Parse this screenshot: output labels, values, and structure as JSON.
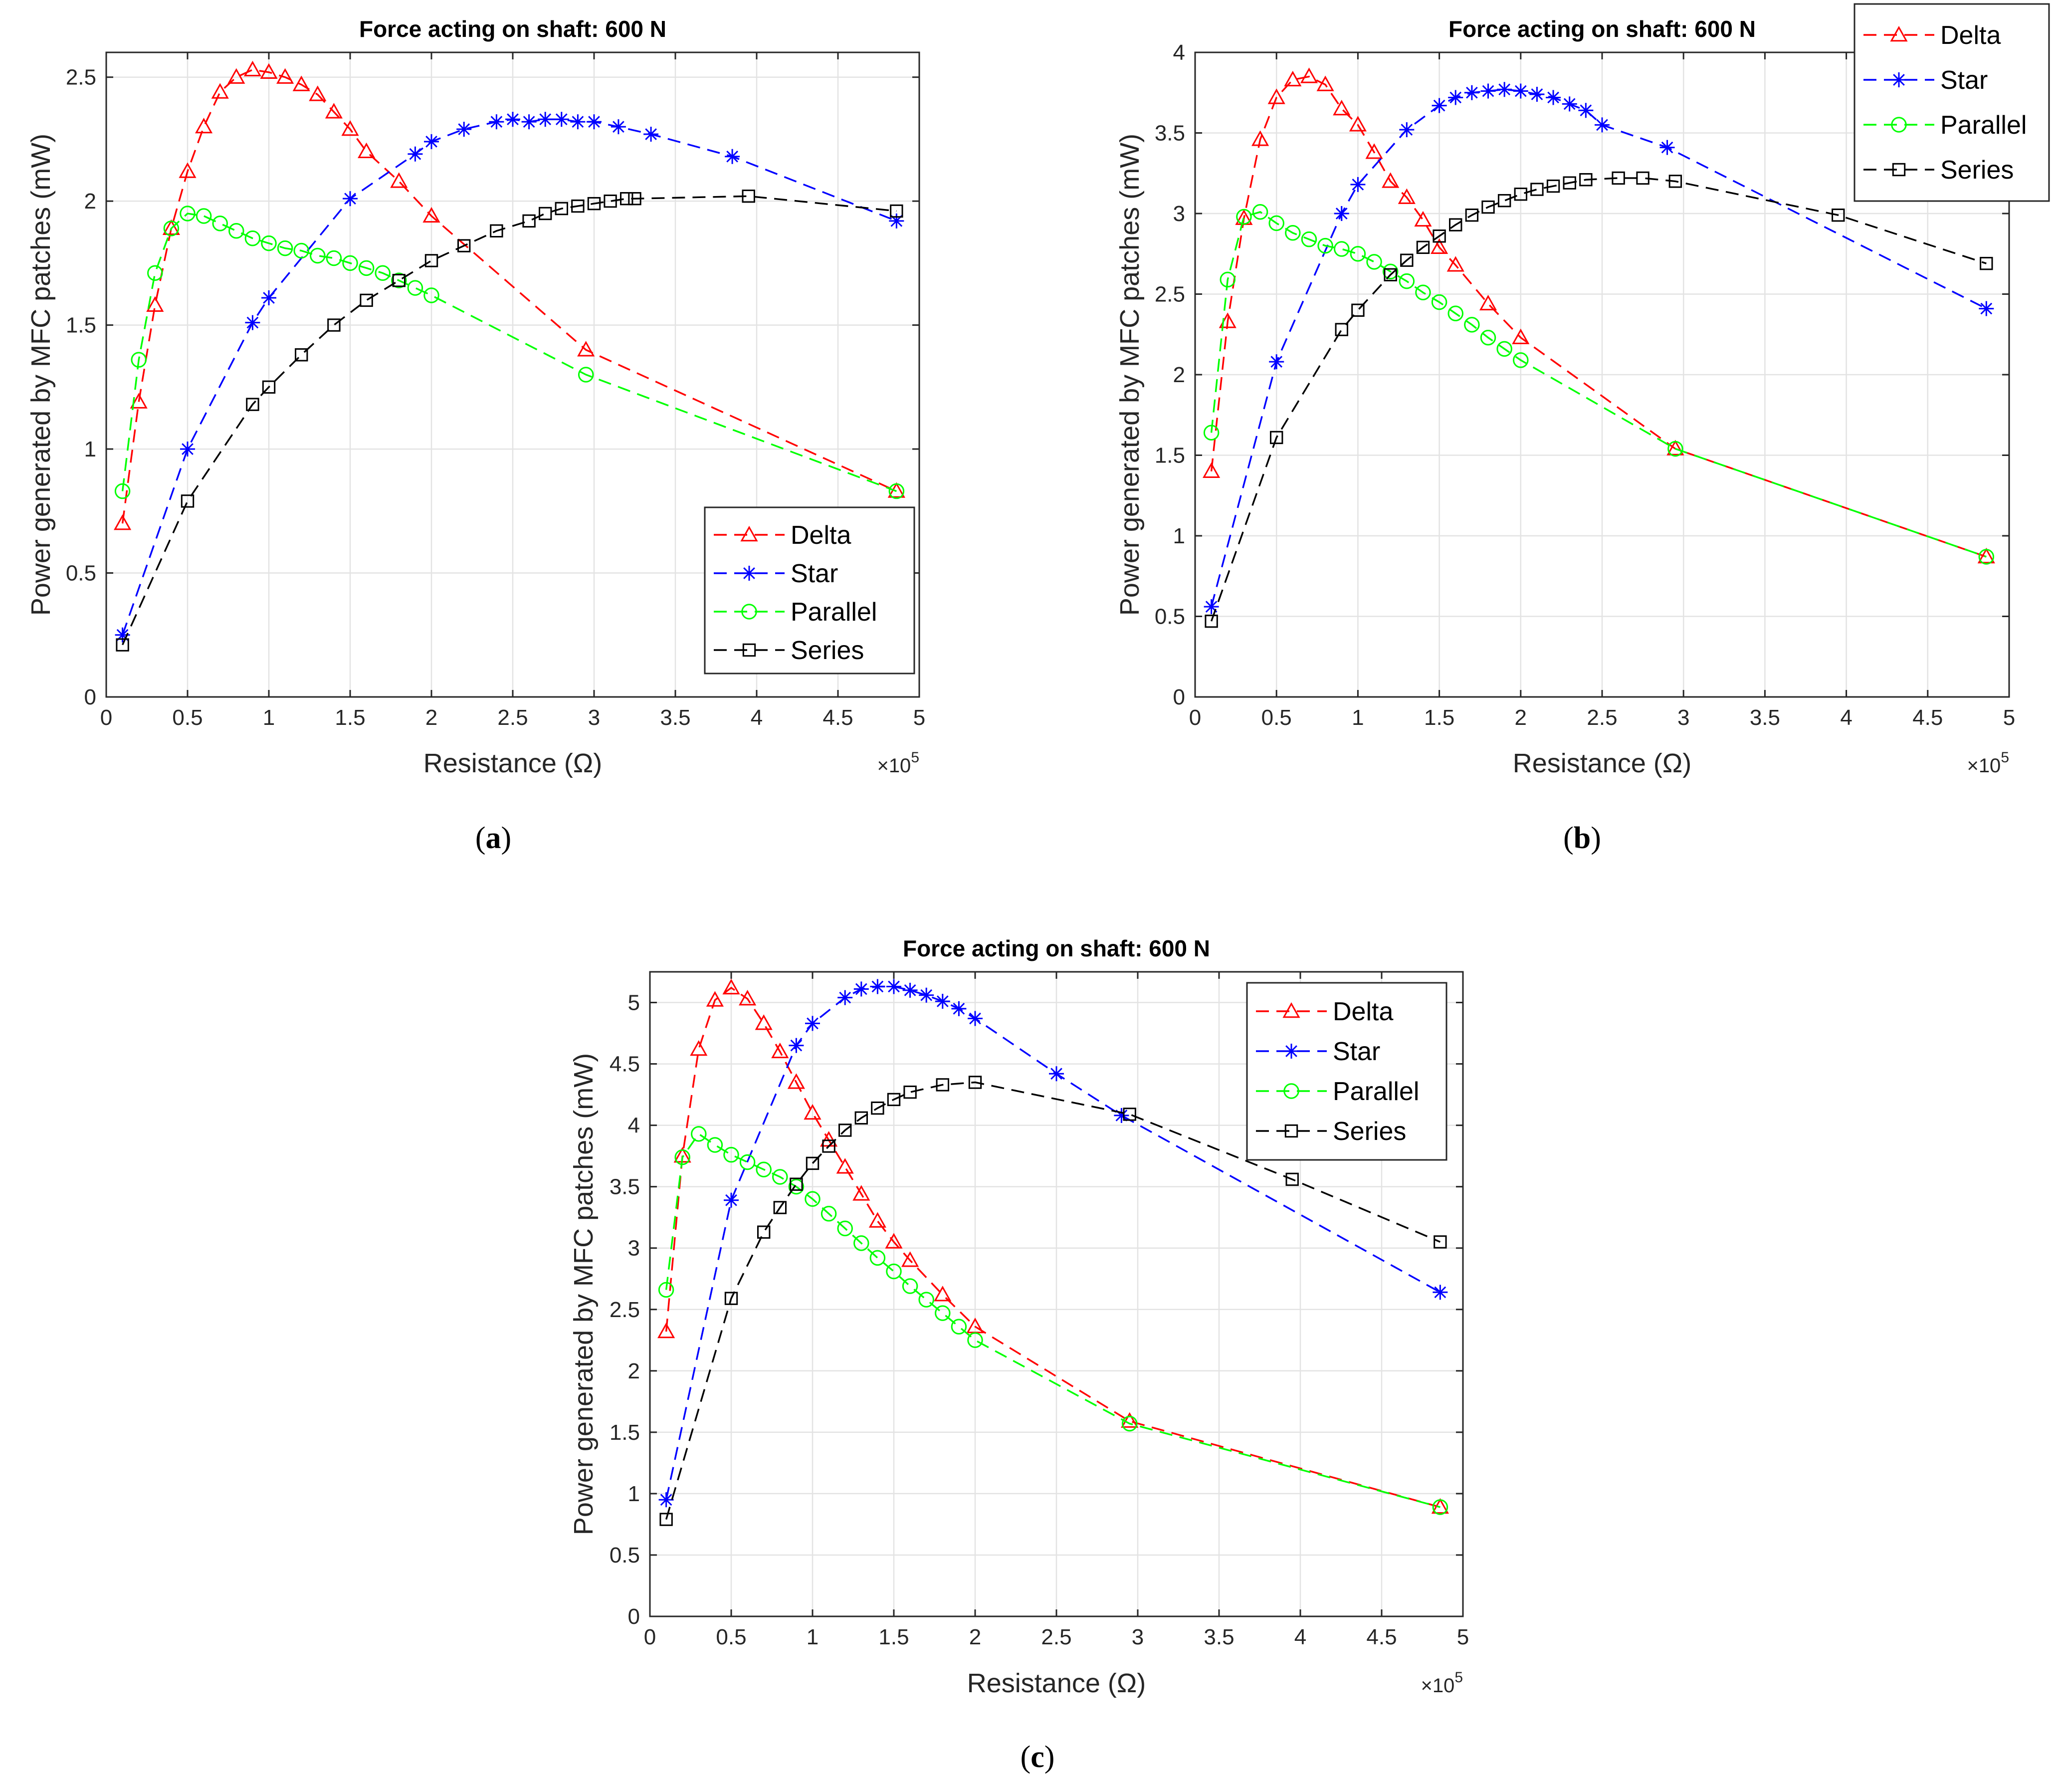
{
  "colors": {
    "Delta": "#ff0000",
    "Star": "#0000ff",
    "Parallel": "#00ff00",
    "Series": "#000000"
  },
  "chart_data": [
    {
      "panel": "a",
      "panel_label": {
        "open": "(",
        "letter": "a",
        "close": ")"
      },
      "type": "line",
      "title": "Force acting on shaft: 600 N",
      "xlabel": "Resistance (Ω)",
      "ylabel": "Power generated by MFC patches (mW)",
      "x_exponent": {
        "base": "×10",
        "power": "5"
      },
      "xlim": [
        0,
        5
      ],
      "ylim": [
        0,
        2.6
      ],
      "xticks": [
        0,
        0.5,
        1,
        1.5,
        2,
        2.5,
        3,
        3.5,
        4,
        4.5,
        5
      ],
      "xtick_labels": [
        "0",
        "0.5",
        "1",
        "1.5",
        "2",
        "2.5",
        "3",
        "3.5",
        "4",
        "4.5",
        "5"
      ],
      "yticks": [
        0,
        0.5,
        1,
        1.5,
        2,
        2.5
      ],
      "ytick_labels": [
        "0",
        "0.5",
        "1",
        "1.5",
        "2",
        "2.5"
      ],
      "legend_position": "bottom-right",
      "series": [
        {
          "name": "Delta",
          "marker": "triangle",
          "x": [
            0.1,
            0.2,
            0.3,
            0.4,
            0.5,
            0.6,
            0.7,
            0.8,
            0.9,
            1.0,
            1.1,
            1.2,
            1.3,
            1.4,
            1.5,
            1.6,
            1.8,
            2.0,
            2.95,
            4.86
          ],
          "values": [
            0.7,
            1.19,
            1.58,
            1.89,
            2.12,
            2.3,
            2.44,
            2.5,
            2.53,
            2.52,
            2.5,
            2.47,
            2.43,
            2.36,
            2.29,
            2.2,
            2.08,
            1.94,
            1.4,
            0.83
          ]
        },
        {
          "name": "Star",
          "marker": "asterisk",
          "x": [
            0.1,
            0.5,
            0.9,
            1.0,
            1.5,
            1.9,
            2.0,
            2.2,
            2.4,
            2.5,
            2.6,
            2.7,
            2.8,
            2.9,
            3.0,
            3.15,
            3.35,
            3.85,
            4.86
          ],
          "values": [
            0.25,
            1.0,
            1.51,
            1.61,
            2.01,
            2.19,
            2.24,
            2.29,
            2.32,
            2.33,
            2.32,
            2.33,
            2.33,
            2.32,
            2.32,
            2.3,
            2.27,
            2.18,
            1.92
          ]
        },
        {
          "name": "Parallel",
          "marker": "circle",
          "x": [
            0.1,
            0.2,
            0.3,
            0.4,
            0.5,
            0.6,
            0.7,
            0.8,
            0.9,
            1.0,
            1.1,
            1.2,
            1.3,
            1.4,
            1.5,
            1.6,
            1.7,
            1.8,
            1.9,
            2.0,
            2.95,
            4.86
          ],
          "values": [
            0.83,
            1.36,
            1.71,
            1.89,
            1.95,
            1.94,
            1.91,
            1.88,
            1.85,
            1.83,
            1.81,
            1.8,
            1.78,
            1.77,
            1.75,
            1.73,
            1.71,
            1.68,
            1.65,
            1.62,
            1.3,
            0.83
          ]
        },
        {
          "name": "Series",
          "marker": "square",
          "x": [
            0.1,
            0.5,
            0.9,
            1.0,
            1.2,
            1.4,
            1.6,
            1.8,
            2.0,
            2.2,
            2.4,
            2.6,
            2.7,
            2.8,
            2.9,
            3.0,
            3.1,
            3.2,
            3.25,
            3.95,
            4.86
          ],
          "values": [
            0.21,
            0.79,
            1.18,
            1.25,
            1.38,
            1.5,
            1.6,
            1.68,
            1.76,
            1.82,
            1.88,
            1.92,
            1.95,
            1.97,
            1.98,
            1.99,
            2.0,
            2.01,
            2.01,
            2.02,
            1.96
          ]
        }
      ]
    },
    {
      "panel": "b",
      "panel_label": {
        "open": "(",
        "letter": "b",
        "close": ")"
      },
      "type": "line",
      "title": "Force acting on shaft: 600 N",
      "xlabel": "Resistance (Ω)",
      "ylabel": "Power generated by MFC patches (mW)",
      "x_exponent": {
        "base": "×10",
        "power": "5"
      },
      "xlim": [
        0,
        5
      ],
      "ylim": [
        0,
        4
      ],
      "xticks": [
        0,
        0.5,
        1,
        1.5,
        2,
        2.5,
        3,
        3.5,
        4,
        4.5,
        5
      ],
      "xtick_labels": [
        "0",
        "0.5",
        "1",
        "1.5",
        "2",
        "2.5",
        "3",
        "3.5",
        "4",
        "4.5",
        "5"
      ],
      "yticks": [
        0,
        0.5,
        1,
        1.5,
        2,
        2.5,
        3,
        3.5,
        4
      ],
      "ytick_labels": [
        "0",
        "0.5",
        "1",
        "1.5",
        "2",
        "2.5",
        "3",
        "3.5",
        "4"
      ],
      "legend_position": "top-right (outside)",
      "series": [
        {
          "name": "Delta",
          "marker": "triangle",
          "x": [
            0.1,
            0.2,
            0.3,
            0.4,
            0.5,
            0.6,
            0.7,
            0.8,
            0.9,
            1.0,
            1.1,
            1.2,
            1.3,
            1.4,
            1.5,
            1.6,
            1.8,
            2.0,
            2.95,
            4.86
          ],
          "values": [
            1.4,
            2.33,
            2.97,
            3.46,
            3.72,
            3.83,
            3.85,
            3.8,
            3.65,
            3.55,
            3.38,
            3.2,
            3.1,
            2.96,
            2.79,
            2.68,
            2.44,
            2.23,
            1.54,
            0.87
          ]
        },
        {
          "name": "Star",
          "marker": "asterisk",
          "x": [
            0.1,
            0.5,
            0.9,
            1.0,
            1.3,
            1.5,
            1.6,
            1.7,
            1.8,
            1.9,
            2.0,
            2.1,
            2.2,
            2.3,
            2.4,
            2.5,
            2.9,
            4.86
          ],
          "values": [
            0.56,
            2.08,
            3.0,
            3.18,
            3.52,
            3.67,
            3.72,
            3.75,
            3.76,
            3.77,
            3.76,
            3.74,
            3.72,
            3.68,
            3.64,
            3.55,
            3.41,
            2.41
          ]
        },
        {
          "name": "Parallel",
          "marker": "circle",
          "x": [
            0.1,
            0.2,
            0.3,
            0.4,
            0.5,
            0.6,
            0.7,
            0.8,
            0.9,
            1.0,
            1.1,
            1.2,
            1.3,
            1.4,
            1.5,
            1.6,
            1.7,
            1.8,
            1.9,
            2.0,
            2.95,
            4.86
          ],
          "values": [
            1.64,
            2.59,
            2.98,
            3.01,
            2.94,
            2.88,
            2.84,
            2.8,
            2.78,
            2.75,
            2.7,
            2.64,
            2.58,
            2.51,
            2.45,
            2.38,
            2.31,
            2.23,
            2.16,
            2.09,
            1.54,
            0.87
          ]
        },
        {
          "name": "Series",
          "marker": "square",
          "x": [
            0.1,
            0.5,
            0.9,
            1.0,
            1.2,
            1.3,
            1.4,
            1.5,
            1.6,
            1.7,
            1.8,
            1.9,
            2.0,
            2.1,
            2.2,
            2.3,
            2.4,
            2.6,
            2.75,
            2.95,
            3.95,
            4.86
          ],
          "values": [
            0.47,
            1.61,
            2.28,
            2.4,
            2.62,
            2.71,
            2.79,
            2.86,
            2.93,
            2.99,
            3.04,
            3.08,
            3.12,
            3.15,
            3.17,
            3.19,
            3.21,
            3.22,
            3.22,
            3.2,
            2.99,
            2.69
          ]
        }
      ]
    },
    {
      "panel": "c",
      "panel_label": {
        "open": "(",
        "letter": "c",
        "close": ")"
      },
      "type": "line",
      "title": "Force acting on shaft: 600 N",
      "xlabel": "Resistance (Ω)",
      "ylabel": "Power generated by MFC patches (mW)",
      "x_exponent": {
        "base": "×10",
        "power": "5"
      },
      "xlim": [
        0,
        5
      ],
      "ylim": [
        0,
        5.25
      ],
      "xticks": [
        0,
        0.5,
        1,
        1.5,
        2,
        2.5,
        3,
        3.5,
        4,
        4.5,
        5
      ],
      "xtick_labels": [
        "0",
        "0.5",
        "1",
        "1.5",
        "2",
        "2.5",
        "3",
        "3.5",
        "4",
        "4.5",
        "5"
      ],
      "yticks": [
        0,
        0.5,
        1,
        1.5,
        2,
        2.5,
        3,
        3.5,
        4,
        4.5,
        5
      ],
      "ytick_labels": [
        "0",
        "0.5",
        "1",
        "1.5",
        "2",
        "2.5",
        "3",
        "3.5",
        "4",
        "4.5",
        "5"
      ],
      "legend_position": "top-right",
      "series": [
        {
          "name": "Delta",
          "marker": "triangle",
          "x": [
            0.1,
            0.2,
            0.3,
            0.4,
            0.5,
            0.6,
            0.7,
            0.8,
            0.9,
            1.0,
            1.1,
            1.2,
            1.3,
            1.4,
            1.5,
            1.6,
            1.8,
            2.0,
            2.95,
            4.86
          ],
          "values": [
            2.32,
            3.75,
            4.62,
            5.02,
            5.12,
            5.03,
            4.83,
            4.6,
            4.35,
            4.1,
            3.88,
            3.66,
            3.44,
            3.22,
            3.05,
            2.9,
            2.62,
            2.36,
            1.59,
            0.89
          ]
        },
        {
          "name": "Star",
          "marker": "asterisk",
          "x": [
            0.1,
            0.5,
            0.9,
            1.0,
            1.2,
            1.3,
            1.4,
            1.5,
            1.6,
            1.7,
            1.8,
            1.9,
            2.0,
            2.5,
            2.9,
            4.86
          ],
          "values": [
            0.95,
            3.39,
            4.65,
            4.83,
            5.04,
            5.11,
            5.13,
            5.13,
            5.1,
            5.06,
            5.01,
            4.95,
            4.87,
            4.42,
            4.08,
            2.64
          ]
        },
        {
          "name": "Parallel",
          "marker": "circle",
          "x": [
            0.1,
            0.2,
            0.3,
            0.4,
            0.5,
            0.6,
            0.7,
            0.8,
            0.9,
            1.0,
            1.1,
            1.2,
            1.3,
            1.4,
            1.5,
            1.6,
            1.7,
            1.8,
            1.9,
            2.0,
            2.95,
            4.86
          ],
          "values": [
            2.66,
            3.74,
            3.93,
            3.84,
            3.76,
            3.7,
            3.64,
            3.58,
            3.5,
            3.4,
            3.28,
            3.16,
            3.04,
            2.92,
            2.81,
            2.69,
            2.58,
            2.47,
            2.36,
            2.25,
            1.57,
            0.89
          ]
        },
        {
          "name": "Series",
          "marker": "square",
          "x": [
            0.1,
            0.5,
            0.7,
            0.8,
            0.9,
            1.0,
            1.1,
            1.2,
            1.3,
            1.4,
            1.5,
            1.6,
            1.8,
            2.0,
            2.95,
            3.95,
            4.86
          ],
          "values": [
            0.79,
            2.59,
            3.13,
            3.33,
            3.52,
            3.69,
            3.83,
            3.96,
            4.06,
            4.14,
            4.21,
            4.27,
            4.33,
            4.35,
            4.09,
            3.56,
            3.05
          ]
        }
      ]
    }
  ]
}
